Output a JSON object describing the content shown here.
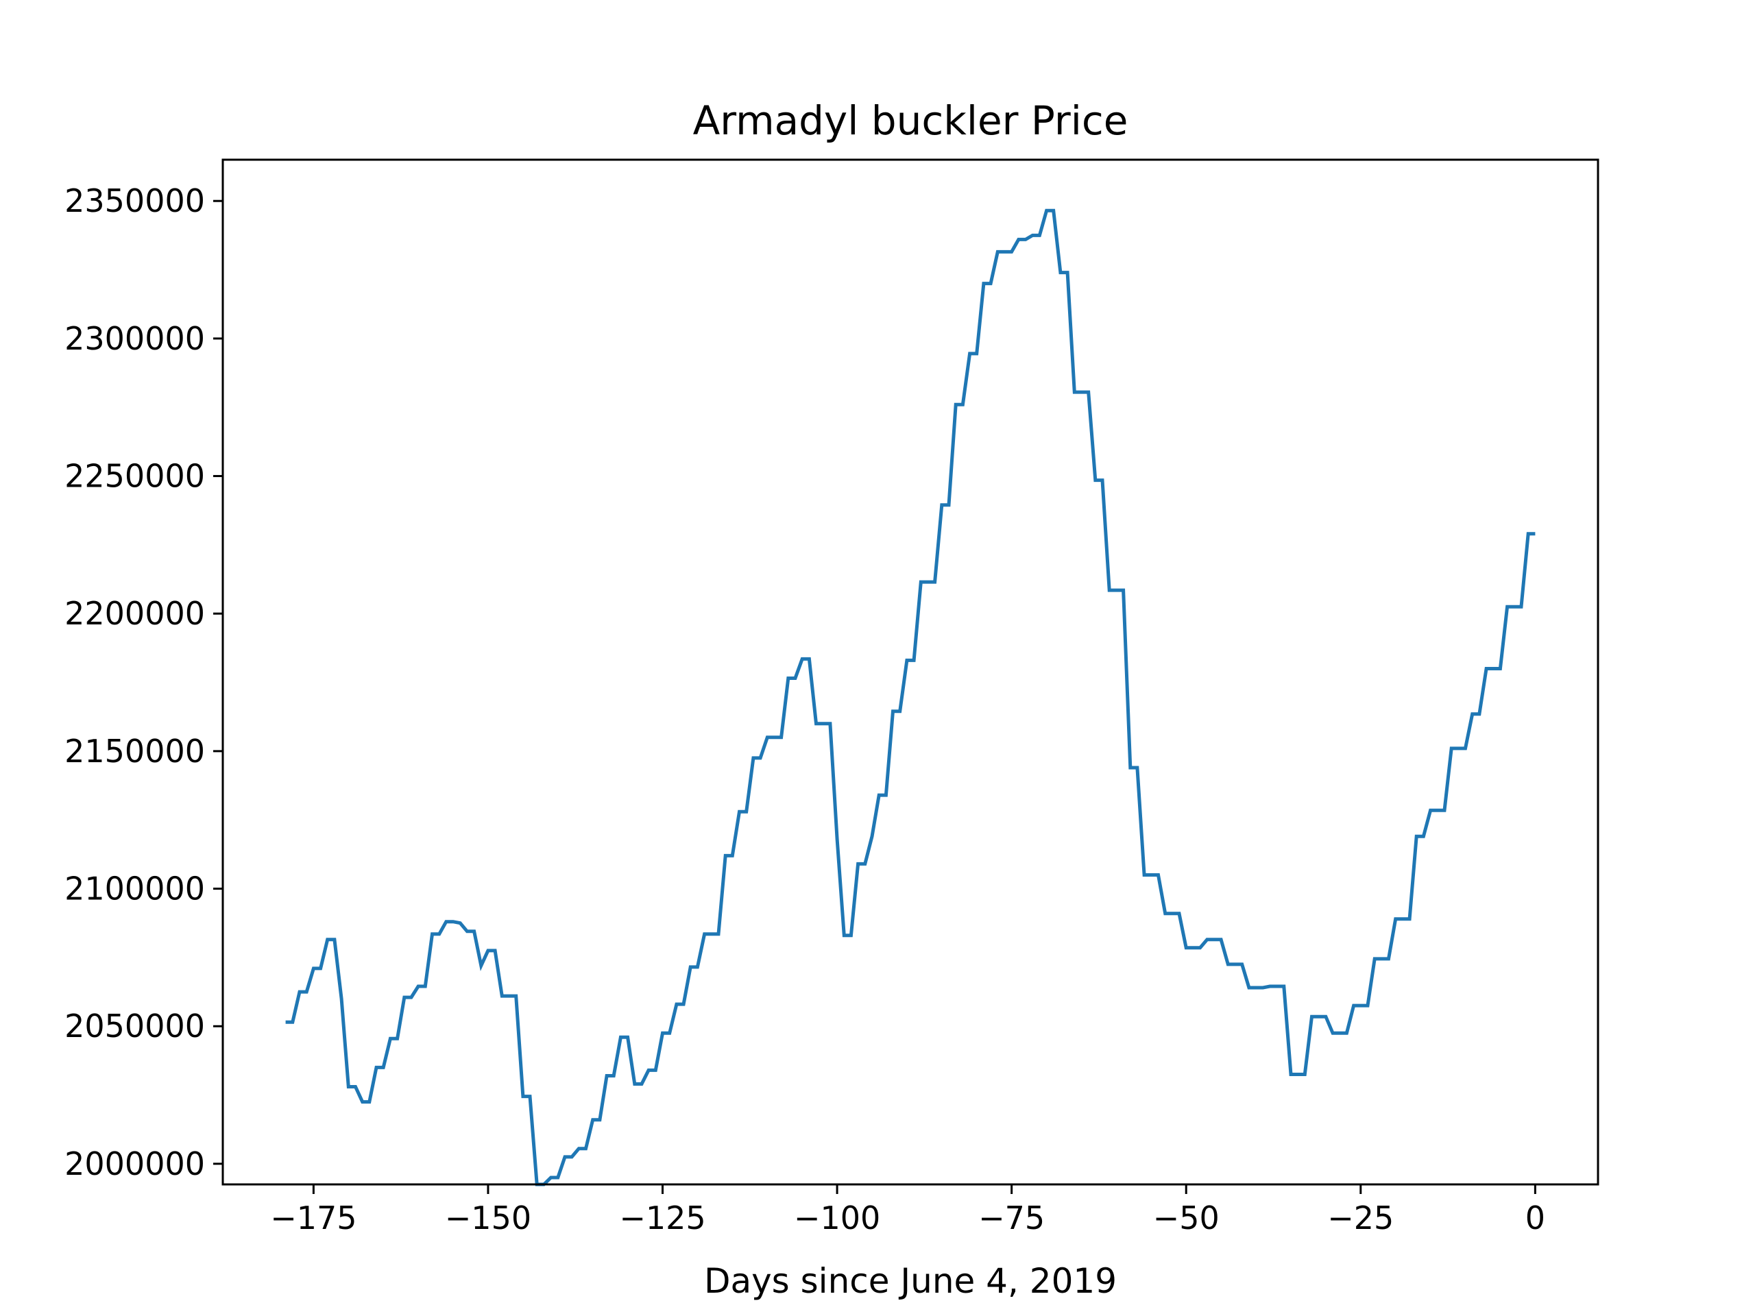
{
  "chart_data": {
    "type": "line",
    "title": "Armadyl buckler Price",
    "xlabel": "Days since June 4, 2019",
    "ylabel": "",
    "xlim": [
      -188,
      9
    ],
    "ylim": [
      1992500,
      2365000
    ],
    "xticks": [
      -175,
      -150,
      -125,
      -100,
      -75,
      -50,
      -25,
      0
    ],
    "xtick_labels": [
      "−175",
      "−150",
      "−125",
      "−100",
      "−75",
      "−50",
      "−25",
      "0"
    ],
    "yticks": [
      2000000,
      2050000,
      2100000,
      2150000,
      2200000,
      2250000,
      2300000,
      2350000
    ],
    "ytick_labels": [
      "2000000",
      "2050000",
      "2100000",
      "2150000",
      "2200000",
      "2250000",
      "2300000",
      "2350000"
    ],
    "grid": false,
    "series": [
      {
        "color": "#1f77b4",
        "x": [
          -179,
          -178,
          -177,
          -176,
          -175,
          -174,
          -173,
          -172,
          -171,
          -170,
          -169,
          -168,
          -167,
          -166,
          -165,
          -164,
          -163,
          -162,
          -161,
          -160,
          -159,
          -158,
          -157,
          -156,
          -155,
          -154,
          -153,
          -152,
          -151,
          -150,
          -149,
          -148,
          -147,
          -146,
          -145,
          -144,
          -143,
          -142,
          -141,
          -140,
          -139,
          -138,
          -137,
          -136,
          -135,
          -134,
          -133,
          -132,
          -131,
          -130,
          -129,
          -128,
          -127,
          -126,
          -125,
          -124,
          -123,
          -122,
          -121,
          -120,
          -119,
          -118,
          -117,
          -116,
          -115,
          -114,
          -113,
          -112,
          -111,
          -110,
          -109,
          -108,
          -107,
          -106,
          -105,
          -104,
          -103,
          -102,
          -101,
          -100,
          -99,
          -98,
          -97,
          -96,
          -95,
          -94,
          -93,
          -92,
          -91,
          -90,
          -89,
          -88,
          -87,
          -86,
          -85,
          -84,
          -83,
          -82,
          -81,
          -80,
          -79,
          -78,
          -77,
          -76,
          -75,
          -74,
          -73,
          -72,
          -71,
          -70,
          -69,
          -68,
          -67,
          -66,
          -65,
          -64,
          -63,
          -62,
          -61,
          -60,
          -59,
          -58,
          -57,
          -56,
          -55,
          -54,
          -53,
          -52,
          -51,
          -50,
          -49,
          -48,
          -47,
          -46,
          -45,
          -44,
          -43,
          -42,
          -41,
          -40,
          -39,
          -38,
          -37,
          -36,
          -35,
          -34,
          -33,
          -32,
          -31,
          -30,
          -29,
          -28,
          -27,
          -26,
          -25,
          -24,
          -23,
          -22,
          -21,
          -20,
          -19,
          -18,
          -17,
          -16,
          -15,
          -14,
          -13,
          -12,
          -11,
          -10,
          -9,
          -8,
          -7,
          -6,
          -5,
          -4,
          -3,
          -2,
          -1,
          0
        ],
        "y": [
          2051500,
          2051500,
          2062500,
          2062500,
          2071000,
          2071000,
          2081500,
          2081500,
          2060000,
          2028000,
          2028000,
          2022500,
          2022500,
          2035000,
          2035000,
          2045500,
          2045500,
          2060500,
          2060500,
          2064500,
          2064500,
          2083500,
          2083500,
          2088000,
          2088000,
          2087500,
          2084500,
          2084500,
          2072000,
          2077500,
          2077500,
          2061000,
          2061000,
          2061000,
          2024500,
          2024500,
          1992500,
          1992500,
          1995000,
          1995000,
          2002500,
          2002500,
          2005500,
          2005500,
          2016000,
          2016000,
          2032000,
          2032000,
          2046000,
          2046000,
          2029000,
          2029000,
          2034000,
          2034000,
          2047500,
          2047500,
          2058000,
          2058000,
          2071500,
          2071500,
          2083500,
          2083500,
          2083500,
          2112000,
          2112000,
          2128000,
          2128000,
          2147500,
          2147500,
          2155000,
          2155000,
          2155000,
          2176500,
          2176500,
          2183500,
          2183500,
          2160000,
          2160000,
          2160000,
          2118000,
          2083000,
          2083000,
          2109000,
          2109000,
          2119000,
          2134000,
          2134000,
          2164500,
          2164500,
          2183000,
          2183000,
          2211500,
          2211500,
          2211500,
          2239500,
          2239500,
          2276000,
          2276000,
          2294500,
          2294500,
          2320000,
          2320000,
          2331500,
          2331500,
          2331500,
          2336000,
          2336000,
          2337500,
          2337500,
          2346500,
          2346500,
          2324000,
          2324000,
          2280500,
          2280500,
          2280500,
          2248500,
          2248500,
          2208500,
          2208500,
          2208500,
          2144000,
          2144000,
          2105000,
          2105000,
          2105000,
          2091000,
          2091000,
          2091000,
          2078500,
          2078500,
          2078500,
          2081500,
          2081500,
          2081500,
          2072500,
          2072500,
          2072500,
          2064000,
          2064000,
          2064000,
          2064500,
          2064500,
          2064500,
          2032500,
          2032500,
          2032500,
          2053500,
          2053500,
          2053500,
          2047500,
          2047500,
          2047500,
          2057500,
          2057500,
          2057500,
          2074500,
          2074500,
          2074500,
          2089000,
          2089000,
          2089000,
          2119000,
          2119000,
          2128500,
          2128500,
          2128500,
          2151000,
          2151000,
          2151000,
          2163500,
          2163500,
          2180000,
          2180000,
          2180000,
          2202500,
          2202500,
          2202500,
          2229000,
          2229000
        ]
      }
    ]
  }
}
